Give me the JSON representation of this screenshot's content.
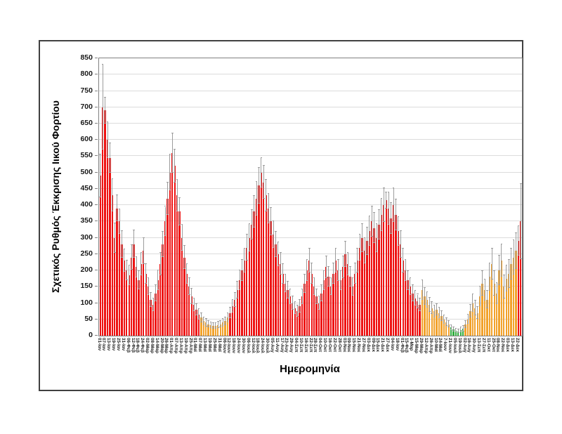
{
  "chart_data": {
    "type": "bar",
    "title": "",
    "ylabel": "Σχετικός Ρυθμός Έκκρισης Ιικού Φορτίου",
    "xlabel": "Ημερομηνία",
    "ylim": [
      0,
      850
    ],
    "ytick_step": 50,
    "y_ticks": [
      0,
      50,
      100,
      150,
      200,
      250,
      300,
      350,
      400,
      450,
      500,
      550,
      600,
      650,
      700,
      750,
      800,
      850
    ],
    "grid": true,
    "legend": "none",
    "error_bars": true,
    "bars_per_label": 2,
    "colors": {
      "r": "#ee1212",
      "o": "#f2a22b",
      "g": "#2fae3c",
      "error": "#9c9c9c",
      "grid": "#dcdcdc",
      "axis": "#808080"
    },
    "x_labels": [
      "01-Ιαν",
      "07-Ιαν",
      "13-Ιαν",
      "19-Ιαν",
      "25-Ιαν",
      "31-Ιαν",
      "06-Φεβ",
      "12-Φεβ",
      "18-Φεβ",
      "24-Φεβ",
      "02-Μαρ",
      "08-Μαρ",
      "14-Μαρ",
      "20-Μαρ",
      "26-Μαρ",
      "01-Απρ",
      "07-Απρ",
      "13-Απρ",
      "19-Απρ",
      "25-Απρ",
      "01-Μαϊ",
      "07-Μαϊ",
      "13-Μαϊ",
      "19-Μαϊ",
      "25-Μαϊ",
      "31-Μαϊ",
      "06-Ιουν",
      "12-Ιουν",
      "18-Ιουν",
      "24-Ιουν",
      "30-Ιουν",
      "06-Ιουλ",
      "12-Ιουλ",
      "18-Ιουλ",
      "24-Ιουλ",
      "30-Ιουλ",
      "05-Αυγ",
      "11-Αυγ",
      "17-Αυγ",
      "23-Αυγ",
      "29-Αυγ",
      "04-Σεπ",
      "10-Σεπ",
      "16-Σεπ",
      "22-Σεπ",
      "28-Σεπ",
      "04-Οκτ",
      "10-Οκτ",
      "16-Οκτ",
      "22-Οκτ",
      "28-Οκτ",
      "03-Νοε",
      "09-Νοε",
      "15-Νοε",
      "21-Νοε",
      "27-Νοε",
      "03-Δεκ",
      "09-Δεκ",
      "15-Δεκ",
      "21-Δεκ",
      "27-Δεκ",
      "04-Ιαν",
      "18-Ιαν",
      "01-Φεβ",
      "15-Φεβ",
      "1-Μαρ",
      "15-Μαρ",
      "29-Μαρ",
      "12-Απρ",
      "26-Απρ",
      "10-Μαϊ",
      "24-Μαϊ",
      "7-Ιουν",
      "21-Ιουν",
      "05-Ιουλ",
      "19-Ιουλ",
      "02-Αυγ",
      "16-Αυγ",
      "30-Αυγ",
      "13-Σεπ",
      "27-Σεπ",
      "11-Οκτ",
      "25-Οκτ",
      "08-Νοε",
      "22-Νοε",
      "03-Δεκ",
      "13-Δεκ",
      "22-Δεκ"
    ],
    "bars": [
      [
        490,
        65,
        "r"
      ],
      [
        700,
        130,
        "r"
      ],
      [
        690,
        40,
        "r"
      ],
      [
        600,
        55,
        "r"
      ],
      [
        545,
        45,
        "r"
      ],
      [
        430,
        50,
        "r"
      ],
      [
        300,
        45,
        "r"
      ],
      [
        390,
        40,
        "r"
      ],
      [
        350,
        38,
        "r"
      ],
      [
        280,
        40,
        "r"
      ],
      [
        230,
        35,
        "r"
      ],
      [
        200,
        30,
        "r"
      ],
      [
        185,
        30,
        "r"
      ],
      [
        240,
        38,
        "r"
      ],
      [
        280,
        42,
        "r"
      ],
      [
        210,
        32,
        "r"
      ],
      [
        170,
        28,
        "r"
      ],
      [
        220,
        35,
        "r"
      ],
      [
        260,
        40,
        "r"
      ],
      [
        190,
        30,
        "r"
      ],
      [
        150,
        26,
        "r"
      ],
      [
        110,
        22,
        "r"
      ],
      [
        95,
        20,
        "r"
      ],
      [
        130,
        25,
        "r"
      ],
      [
        170,
        30,
        "r"
      ],
      [
        220,
        34,
        "r"
      ],
      [
        280,
        38,
        "r"
      ],
      [
        350,
        45,
        "r"
      ],
      [
        420,
        50,
        "r"
      ],
      [
        500,
        55,
        "r"
      ],
      [
        560,
        60,
        "r"
      ],
      [
        520,
        50,
        "r"
      ],
      [
        430,
        48,
        "r"
      ],
      [
        380,
        42,
        "r"
      ],
      [
        300,
        40,
        "r"
      ],
      [
        240,
        35,
        "r"
      ],
      [
        190,
        30,
        "r"
      ],
      [
        150,
        26,
        "r"
      ],
      [
        120,
        24,
        "r"
      ],
      [
        95,
        20,
        "r"
      ],
      [
        80,
        18,
        "r"
      ],
      [
        65,
        16,
        "r"
      ],
      [
        55,
        14,
        "o"
      ],
      [
        45,
        12,
        "o"
      ],
      [
        40,
        11,
        "o"
      ],
      [
        35,
        10,
        "o"
      ],
      [
        32,
        9,
        "o"
      ],
      [
        30,
        9,
        "o"
      ],
      [
        30,
        9,
        "o"
      ],
      [
        33,
        10,
        "o"
      ],
      [
        35,
        10,
        "o"
      ],
      [
        40,
        11,
        "o"
      ],
      [
        45,
        12,
        "o"
      ],
      [
        55,
        14,
        "o"
      ],
      [
        70,
        16,
        "r"
      ],
      [
        90,
        19,
        "r"
      ],
      [
        110,
        22,
        "r"
      ],
      [
        140,
        26,
        "r"
      ],
      [
        170,
        30,
        "r"
      ],
      [
        200,
        33,
        "r"
      ],
      [
        230,
        36,
        "r"
      ],
      [
        270,
        40,
        "r"
      ],
      [
        300,
        42,
        "r"
      ],
      [
        340,
        45,
        "r"
      ],
      [
        380,
        48,
        "r"
      ],
      [
        420,
        52,
        "r"
      ],
      [
        460,
        55,
        "r"
      ],
      [
        500,
        45,
        "r"
      ],
      [
        470,
        50,
        "r"
      ],
      [
        430,
        48,
        "r"
      ],
      [
        390,
        45,
        "r"
      ],
      [
        350,
        42,
        "r"
      ],
      [
        310,
        40,
        "r"
      ],
      [
        280,
        38,
        "r"
      ],
      [
        250,
        36,
        "r"
      ],
      [
        220,
        33,
        "r"
      ],
      [
        190,
        30,
        "r"
      ],
      [
        160,
        27,
        "r"
      ],
      [
        140,
        25,
        "r"
      ],
      [
        120,
        23,
        "r"
      ],
      [
        100,
        20,
        "r"
      ],
      [
        85,
        18,
        "r"
      ],
      [
        75,
        17,
        "r"
      ],
      [
        90,
        19,
        "r"
      ],
      [
        120,
        23,
        "r"
      ],
      [
        160,
        28,
        "r"
      ],
      [
        200,
        33,
        "r"
      ],
      [
        230,
        36,
        "r"
      ],
      [
        190,
        31,
        "r"
      ],
      [
        150,
        26,
        "r"
      ],
      [
        120,
        23,
        "r"
      ],
      [
        100,
        21,
        "r"
      ],
      [
        130,
        24,
        "r"
      ],
      [
        170,
        29,
        "r"
      ],
      [
        210,
        34,
        "r"
      ],
      [
        180,
        30,
        "r"
      ],
      [
        150,
        26,
        "r"
      ],
      [
        190,
        31,
        "r"
      ],
      [
        230,
        36,
        "r"
      ],
      [
        200,
        33,
        "r"
      ],
      [
        170,
        29,
        "r"
      ],
      [
        210,
        34,
        "r"
      ],
      [
        250,
        38,
        "r"
      ],
      [
        220,
        35,
        "r"
      ],
      [
        180,
        30,
        "r"
      ],
      [
        150,
        27,
        "r"
      ],
      [
        190,
        31,
        "r"
      ],
      [
        230,
        36,
        "r"
      ],
      [
        270,
        40,
        "r"
      ],
      [
        300,
        43,
        "r"
      ],
      [
        260,
        39,
        "r"
      ],
      [
        290,
        42,
        "r"
      ],
      [
        320,
        45,
        "r"
      ],
      [
        350,
        47,
        "r"
      ],
      [
        330,
        46,
        "r"
      ],
      [
        300,
        43,
        "r"
      ],
      [
        340,
        46,
        "r"
      ],
      [
        370,
        49,
        "r"
      ],
      [
        400,
        52,
        "r"
      ],
      [
        415,
        25,
        "r"
      ],
      [
        390,
        50,
        "r"
      ],
      [
        360,
        47,
        "r"
      ],
      [
        400,
        51,
        "r"
      ],
      [
        370,
        48,
        "r"
      ],
      [
        320,
        44,
        "r"
      ],
      [
        280,
        40,
        "r"
      ],
      [
        230,
        36,
        "r"
      ],
      [
        200,
        33,
        "r"
      ],
      [
        170,
        29,
        "r"
      ],
      [
        150,
        26,
        "r"
      ],
      [
        130,
        24,
        "r"
      ],
      [
        115,
        22,
        "r"
      ],
      [
        105,
        21,
        "r"
      ],
      [
        95,
        20,
        "r"
      ],
      [
        140,
        30,
        "o"
      ],
      [
        120,
        26,
        "o"
      ],
      [
        110,
        24,
        "o"
      ],
      [
        95,
        21,
        "o"
      ],
      [
        85,
        19,
        "o"
      ],
      [
        75,
        18,
        "o"
      ],
      [
        80,
        18,
        "o"
      ],
      [
        70,
        17,
        "o"
      ],
      [
        60,
        15,
        "o"
      ],
      [
        50,
        13,
        "o"
      ],
      [
        42,
        11,
        "o"
      ],
      [
        35,
        10,
        "o"
      ],
      [
        25,
        8,
        "g"
      ],
      [
        20,
        7,
        "g"
      ],
      [
        16,
        6,
        "g"
      ],
      [
        14,
        6,
        "g"
      ],
      [
        18,
        7,
        "g"
      ],
      [
        22,
        8,
        "g"
      ],
      [
        35,
        11,
        "o"
      ],
      [
        50,
        14,
        "o"
      ],
      [
        75,
        20,
        "o"
      ],
      [
        100,
        26,
        "o"
      ],
      [
        85,
        22,
        "o"
      ],
      [
        70,
        18,
        "o"
      ],
      [
        120,
        30,
        "o"
      ],
      [
        160,
        38,
        "o"
      ],
      [
        140,
        33,
        "o"
      ],
      [
        110,
        27,
        "o"
      ],
      [
        180,
        42,
        "o"
      ],
      [
        220,
        48,
        "o"
      ],
      [
        160,
        38,
        "o"
      ],
      [
        130,
        32,
        "o"
      ],
      [
        200,
        45,
        "o"
      ],
      [
        230,
        50,
        "o"
      ],
      [
        150,
        35,
        "o"
      ],
      [
        175,
        40,
        "o"
      ],
      [
        190,
        43,
        "o"
      ],
      [
        220,
        48,
        "o"
      ],
      [
        240,
        52,
        "o"
      ],
      [
        260,
        55,
        "o"
      ],
      [
        290,
        45,
        "r"
      ],
      [
        350,
        115,
        "r"
      ]
    ]
  }
}
